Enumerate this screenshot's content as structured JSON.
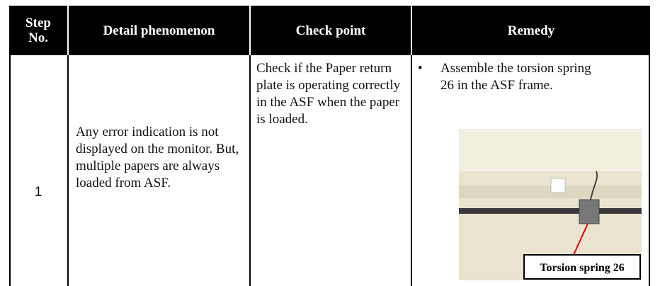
{
  "table": {
    "headers": [
      "Step No.",
      "Detail phenomenon",
      "Check point",
      "Remedy"
    ],
    "rows": [
      {
        "step": "1",
        "detail": "Any error indication is not displayed on the monitor. But, multiple papers are always loaded from ASF.",
        "check": "Check if the Paper return plate is operating correctly in the ASF when the paper is loaded.",
        "remedy": "Assemble the torsion spring 26 in the ASF frame.",
        "figure_label": "Torsion spring 26"
      }
    ]
  }
}
